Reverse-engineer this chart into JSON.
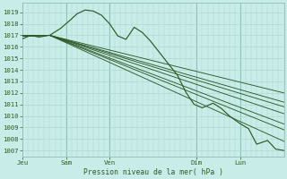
{
  "bg_color": "#c8ece8",
  "grid_color_minor": "#b0d8d0",
  "grid_color_major": "#90c0b8",
  "line_color": "#2d5a27",
  "ylabel_values": [
    1007,
    1008,
    1009,
    1010,
    1011,
    1012,
    1013,
    1014,
    1015,
    1016,
    1017,
    1018,
    1019
  ],
  "ylim": [
    1006.5,
    1019.8
  ],
  "xlabel": "Pression niveau de la mer( hPa )",
  "xtick_labels": [
    "Jeu",
    "Sam",
    "Ven",
    "",
    "Dim",
    "",
    "Lun",
    ""
  ],
  "xtick_pos": [
    0,
    16,
    32,
    48,
    64,
    72,
    80,
    96
  ],
  "total_points": 96
}
